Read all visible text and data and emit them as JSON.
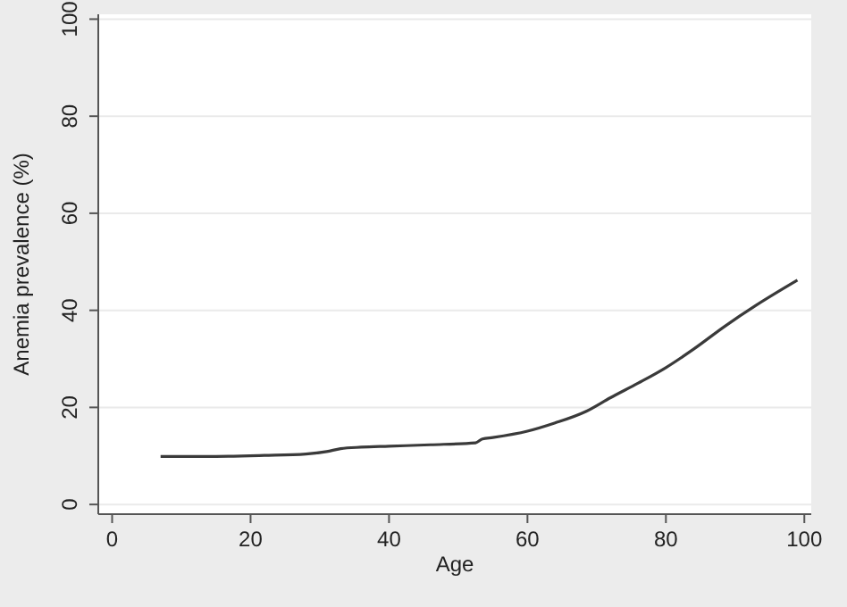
{
  "chart_data": {
    "type": "line",
    "xlabel": "Age",
    "ylabel": "Anemia prevalence (%)",
    "x": [
      7,
      15,
      22,
      28,
      31,
      33,
      36,
      40,
      46,
      52.5,
      53.5,
      55,
      60,
      64,
      68.5,
      72,
      76,
      80,
      84,
      88.5,
      93,
      99
    ],
    "series": [
      {
        "color": "#3a3a3a",
        "values": [
          9.9,
          9.9,
          10.1,
          10.4,
          10.9,
          11.5,
          11.8,
          12,
          12.3,
          12.7,
          13.5,
          13.8,
          15.1,
          16.8,
          19.2,
          22,
          25,
          28.2,
          32,
          36.7,
          41,
          46.2
        ]
      }
    ],
    "xlim": [
      -2,
      101
    ],
    "ylim": [
      -2,
      101
    ],
    "xticks": [
      0,
      20,
      40,
      60,
      80,
      100
    ],
    "yticks": [
      0,
      20,
      40,
      60,
      80,
      100
    ],
    "grid": "y",
    "marker": "none",
    "line_style": "solid"
  }
}
